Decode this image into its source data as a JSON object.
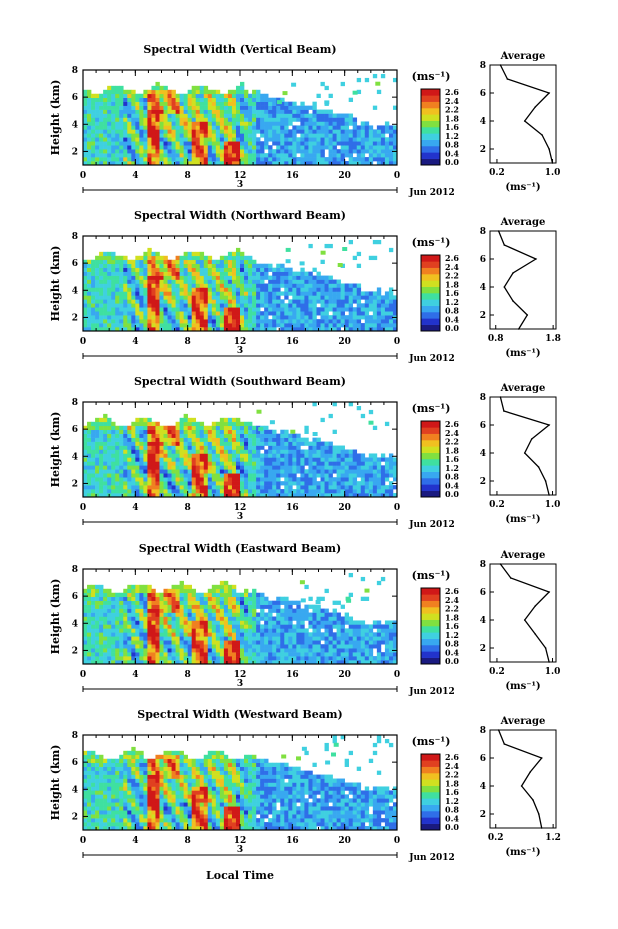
{
  "figure": {
    "shared_xlabel": "Local Time",
    "date_label": "Jun 2012",
    "day_label": "3"
  },
  "colorbar": {
    "unit": "(ms⁻¹)",
    "ticks": [
      "2.6",
      "2.4",
      "2.2",
      "1.8",
      "1.6",
      "1.2",
      "0.8",
      "0.4",
      "0.0"
    ],
    "colors": [
      "#1a1a80",
      "#2233cc",
      "#2f6ee8",
      "#38a8f0",
      "#3fd0e0",
      "#3fe0a0",
      "#80e040",
      "#d0e020",
      "#f0c020",
      "#f08020",
      "#e04020",
      "#d01818"
    ]
  },
  "chart_data": [
    {
      "type": "heatmap",
      "title": "Spectral Width (Vertical Beam)",
      "ylabel": "Height (km)",
      "xlim": [
        0,
        24
      ],
      "ylim": [
        1,
        8
      ],
      "xticks": [
        "0",
        "4",
        "8",
        "12",
        "16",
        "20",
        "0"
      ],
      "yticks": [
        "2",
        "4",
        "6",
        "8"
      ],
      "profile": {
        "title": "Average",
        "xlabel": "(ms⁻¹)",
        "xticks": [
          "0.2",
          "1.0"
        ],
        "yticks": [
          "2",
          "4",
          "6",
          "8"
        ],
        "heights": [
          1,
          2,
          3,
          4,
          5,
          6,
          7,
          8
        ],
        "values": [
          1.0,
          0.95,
          0.85,
          0.6,
          0.75,
          0.95,
          0.35,
          0.25
        ]
      }
    },
    {
      "type": "heatmap",
      "title": "Spectral Width (Northward Beam)",
      "ylabel": "Height (km)",
      "xlim": [
        0,
        24
      ],
      "ylim": [
        1,
        8
      ],
      "xticks": [
        "0",
        "4",
        "8",
        "12",
        "16",
        "20",
        "0"
      ],
      "yticks": [
        "2",
        "4",
        "6",
        "8"
      ],
      "profile": {
        "title": "Average",
        "xlabel": "(ms⁻¹)",
        "xticks": [
          "0.8",
          "1.8"
        ],
        "yticks": [
          "2",
          "4",
          "6",
          "8"
        ],
        "heights": [
          1,
          2,
          3,
          4,
          5,
          6,
          7,
          8
        ],
        "values": [
          1.2,
          1.35,
          1.1,
          0.95,
          1.1,
          1.5,
          0.95,
          0.85
        ]
      }
    },
    {
      "type": "heatmap",
      "title": "Spectral Width (Southward Beam)",
      "ylabel": "Height (km)",
      "xlim": [
        0,
        24
      ],
      "ylim": [
        1,
        8
      ],
      "xticks": [
        "0",
        "4",
        "8",
        "12",
        "16",
        "20",
        "0"
      ],
      "yticks": [
        "2",
        "4",
        "6",
        "8"
      ],
      "profile": {
        "title": "Average",
        "xlabel": "(ms⁻¹)",
        "xticks": [
          "0.2",
          "1.0"
        ],
        "yticks": [
          "2",
          "4",
          "6",
          "8"
        ],
        "heights": [
          1,
          2,
          3,
          4,
          5,
          6,
          7,
          8
        ],
        "values": [
          0.95,
          0.9,
          0.8,
          0.6,
          0.7,
          0.95,
          0.3,
          0.25
        ]
      }
    },
    {
      "type": "heatmap",
      "title": "Spectral Width (Eastward Beam)",
      "ylabel": "Height (km)",
      "xlim": [
        0,
        24
      ],
      "ylim": [
        1,
        8
      ],
      "xticks": [
        "0",
        "4",
        "8",
        "12",
        "16",
        "20",
        "0"
      ],
      "yticks": [
        "2",
        "4",
        "6",
        "8"
      ],
      "profile": {
        "title": "Average",
        "xlabel": "(ms⁻¹)",
        "xticks": [
          "0.2",
          "1.0"
        ],
        "yticks": [
          "2",
          "4",
          "6",
          "8"
        ],
        "heights": [
          1,
          2,
          3,
          4,
          5,
          6,
          7,
          8
        ],
        "values": [
          0.95,
          0.9,
          0.75,
          0.6,
          0.75,
          0.95,
          0.4,
          0.25
        ]
      }
    },
    {
      "type": "heatmap",
      "title": "Spectral Width (Westward Beam)",
      "ylabel": "Height (km)",
      "xlim": [
        0,
        24
      ],
      "ylim": [
        1,
        8
      ],
      "xticks": [
        "0",
        "4",
        "8",
        "12",
        "16",
        "20",
        "0"
      ],
      "yticks": [
        "2",
        "4",
        "6",
        "8"
      ],
      "profile": {
        "title": "Average",
        "xlabel": "(ms⁻¹)",
        "xticks": [
          "0.2",
          "1.2"
        ],
        "yticks": [
          "2",
          "4",
          "6",
          "8"
        ],
        "heights": [
          1,
          2,
          3,
          4,
          5,
          6,
          7,
          8
        ],
        "values": [
          1.0,
          0.95,
          0.85,
          0.65,
          0.8,
          1.0,
          0.35,
          0.25
        ]
      }
    }
  ]
}
